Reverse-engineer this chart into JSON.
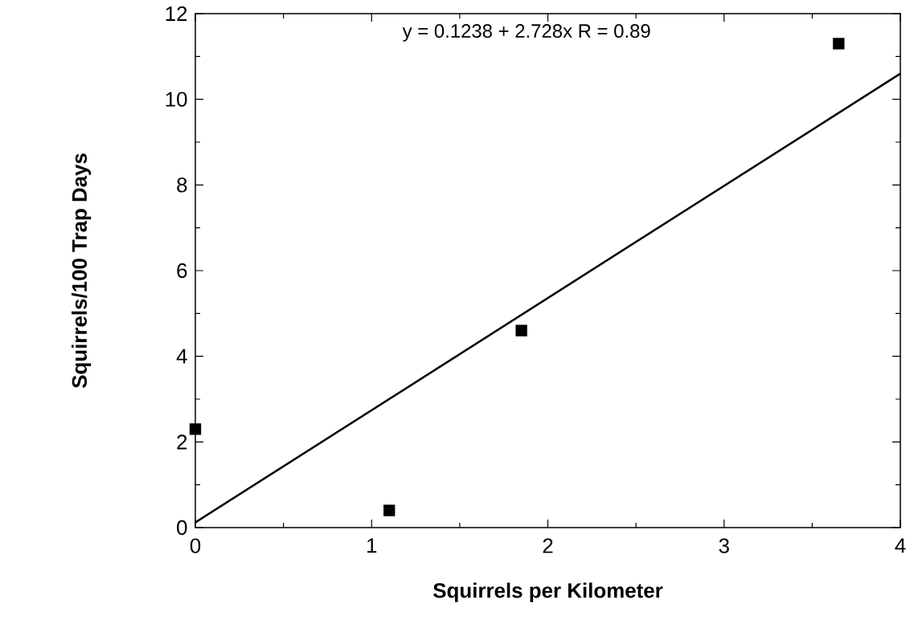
{
  "chart_data": {
    "type": "scatter",
    "xlabel": "Squirrels per Kilometer",
    "ylabel": "Squirrels/100 Trap Days",
    "annotations": [
      "y = 0.1238 + 2.728x   R = 0.89"
    ],
    "series": [
      {
        "x": [
          0,
          1.1,
          1.85,
          3.65
        ],
        "values": [
          2.3,
          0.4,
          4.6,
          11.3
        ],
        "color": "#000000",
        "marker": "square"
      },
      {
        "type": "line",
        "x": [
          0,
          4
        ],
        "values": [
          0.12,
          10.6
        ],
        "color": "#000000",
        "marker": "none"
      }
    ],
    "xlim": [
      0,
      4
    ],
    "ylim": [
      0,
      12
    ],
    "xticks": [
      0,
      1,
      2,
      3,
      4
    ],
    "yticks": [
      0,
      2,
      4,
      6,
      8,
      10,
      12
    ]
  }
}
